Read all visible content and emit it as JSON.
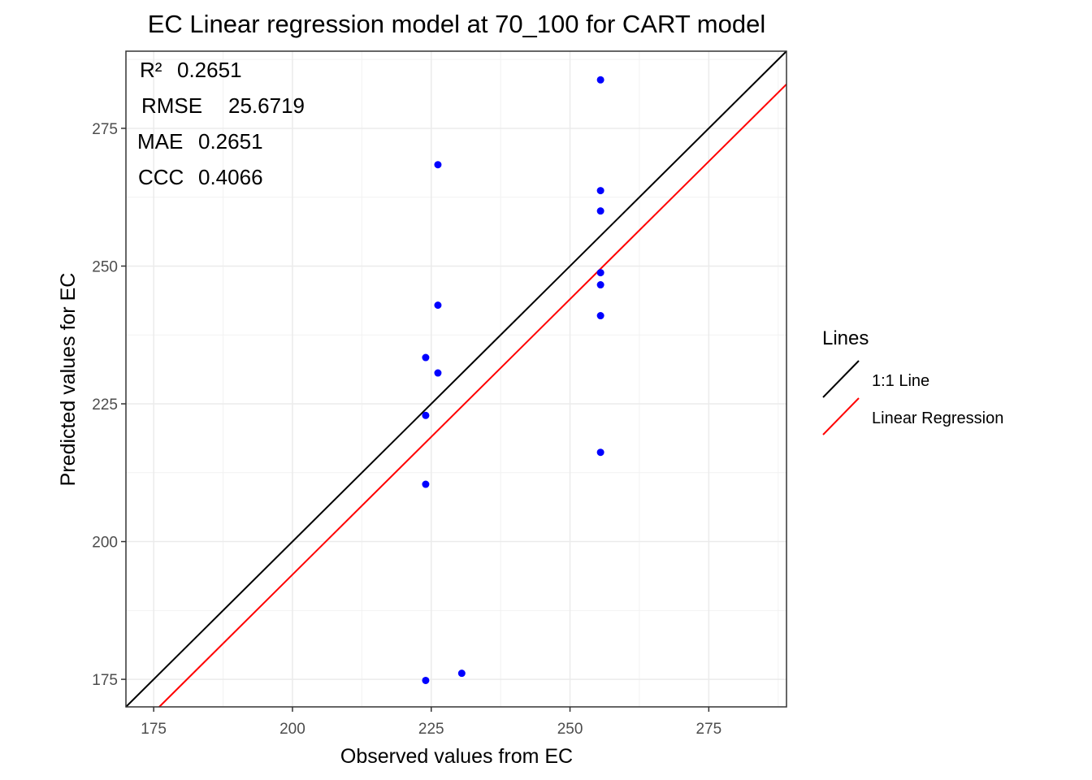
{
  "chart_data": {
    "type": "scatter",
    "title": "EC  Linear regression model at  70_100  for  CART  model",
    "xlabel": "Observed values from EC",
    "ylabel": "Predicted values for EC",
    "xlim": [
      170,
      289
    ],
    "ylim": [
      170,
      289
    ],
    "xticks": [
      175,
      200,
      225,
      250,
      275
    ],
    "yticks": [
      175,
      200,
      225,
      250,
      275
    ],
    "grid": true,
    "point_color": "#0000ff",
    "points": [
      {
        "x": 224,
        "y": 174.8
      },
      {
        "x": 230.5,
        "y": 176.1
      },
      {
        "x": 224,
        "y": 210.4
      },
      {
        "x": 224,
        "y": 222.9
      },
      {
        "x": 224,
        "y": 233.4
      },
      {
        "x": 226.2,
        "y": 230.6
      },
      {
        "x": 226.2,
        "y": 242.9
      },
      {
        "x": 226.2,
        "y": 268.4
      },
      {
        "x": 255.5,
        "y": 216.2
      },
      {
        "x": 255.5,
        "y": 241.0
      },
      {
        "x": 255.5,
        "y": 246.6
      },
      {
        "x": 255.5,
        "y": 248.8
      },
      {
        "x": 255.5,
        "y": 260.0
      },
      {
        "x": 255.5,
        "y": 263.7
      },
      {
        "x": 255.5,
        "y": 283.8
      }
    ],
    "lines": [
      {
        "name": "1:1 Line",
        "color": "#000000",
        "slope": 1,
        "intercept": 0
      },
      {
        "name": "Linear Regression",
        "color": "#ff0000",
        "slope": 1,
        "intercept": -6
      }
    ],
    "stats": [
      {
        "label": "R²",
        "value": "0.2651"
      },
      {
        "label": "RMSE",
        "value": "25.6719"
      },
      {
        "label": "MAE",
        "value": "0.2651"
      },
      {
        "label": "CCC",
        "value": "0.4066"
      }
    ],
    "legend": {
      "title": "Lines",
      "position": "right",
      "items": [
        "1:1 Line",
        "Linear Regression"
      ]
    }
  }
}
